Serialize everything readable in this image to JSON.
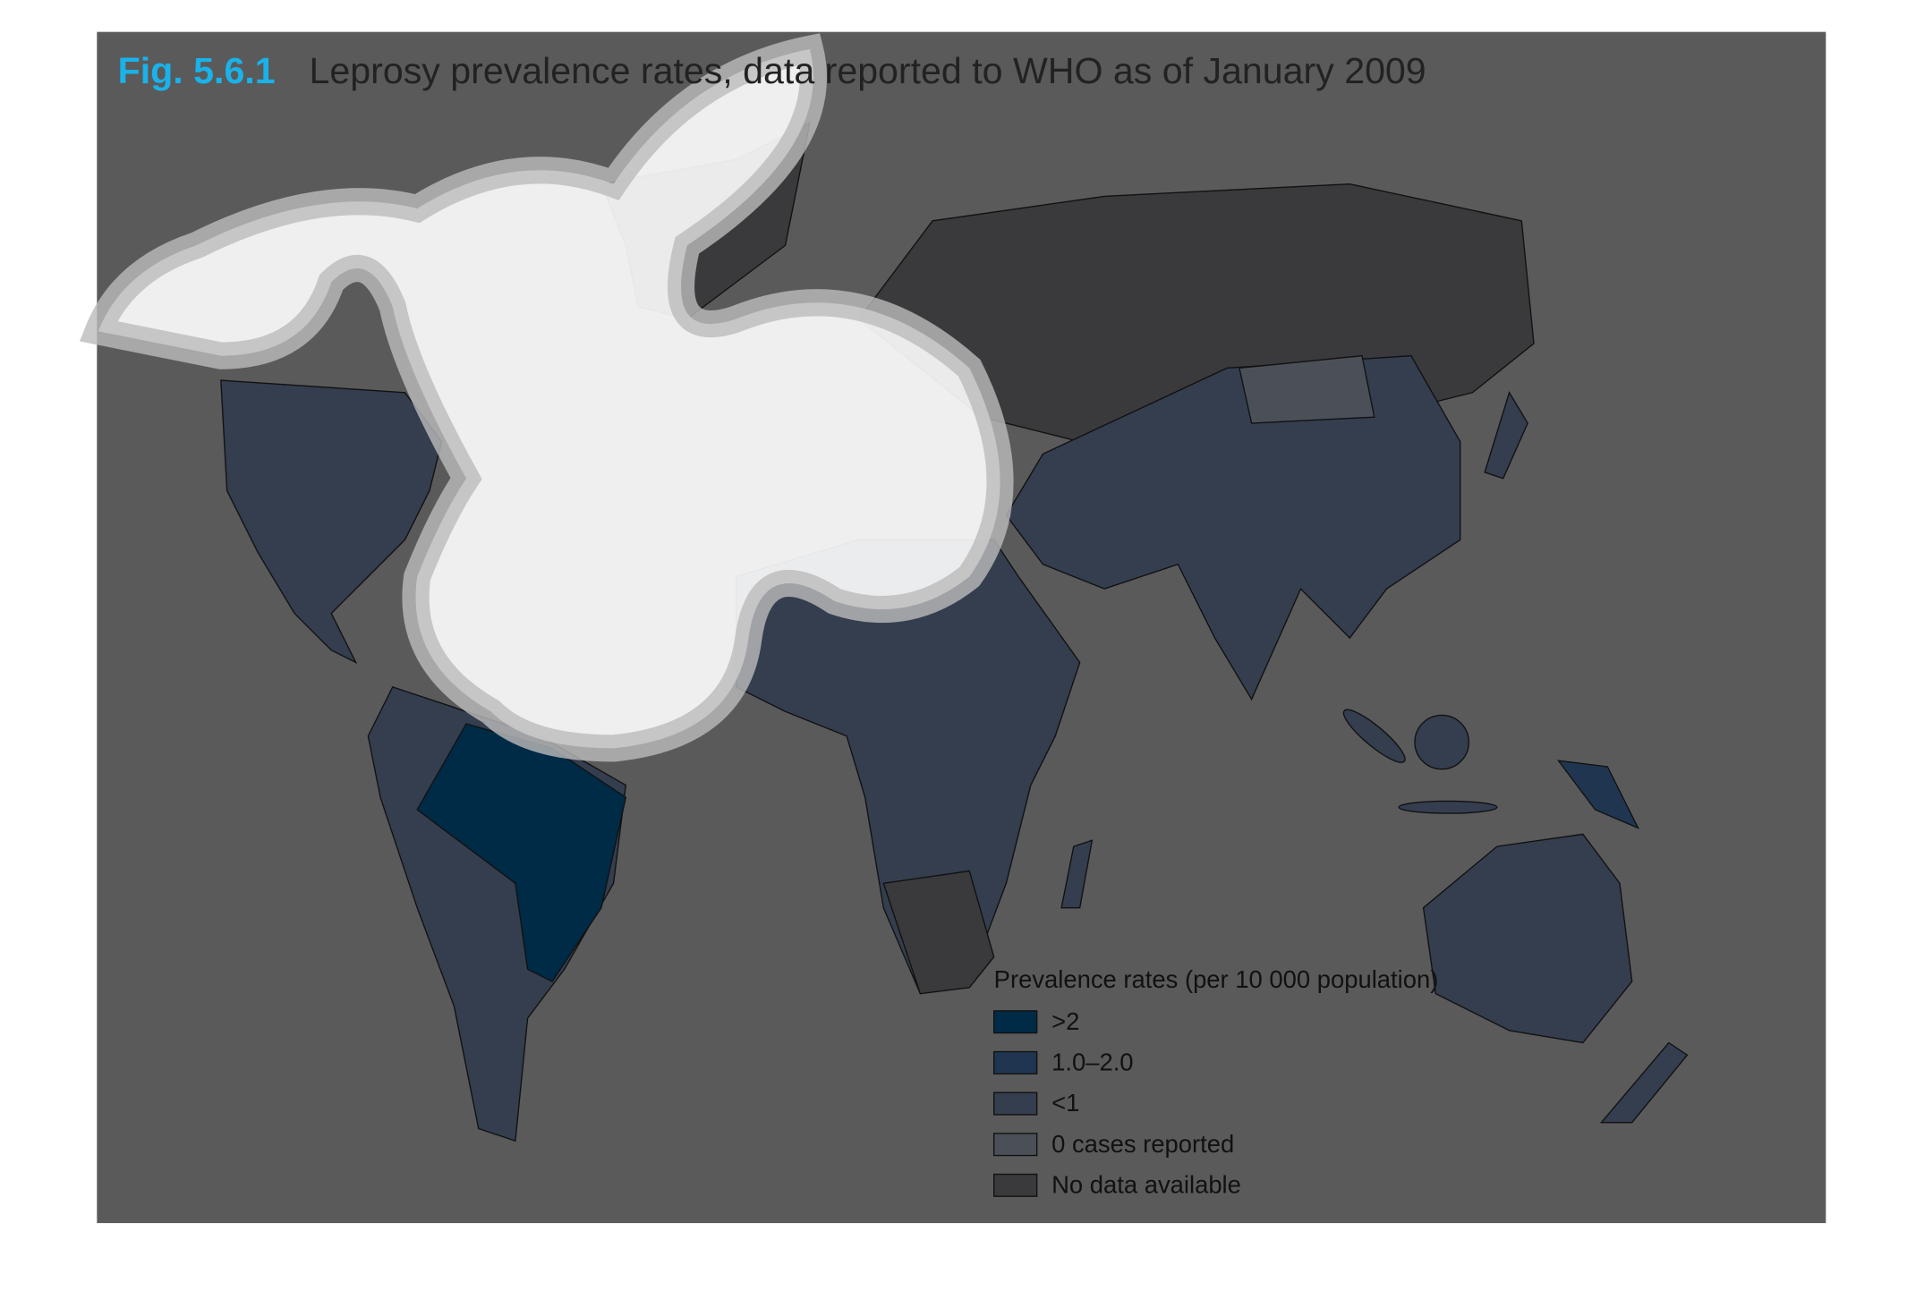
{
  "figure": {
    "label": "Fig. 5.6.1",
    "title": "Leprosy prevalence rates, data reported to WHO as of January 2009"
  },
  "legend": {
    "title": "Prevalence rates (per 10 000 population)",
    "items": [
      {
        "label": ">2",
        "color": "#002b46"
      },
      {
        "label": "1.0–2.0",
        "color": "#203650"
      },
      {
        "label": "<1",
        "color": "#343e4f"
      },
      {
        "label": "0 cases reported",
        "color": "#4b5058"
      },
      {
        "label": "No data available",
        "color": "#3a3a3c"
      }
    ]
  }
}
